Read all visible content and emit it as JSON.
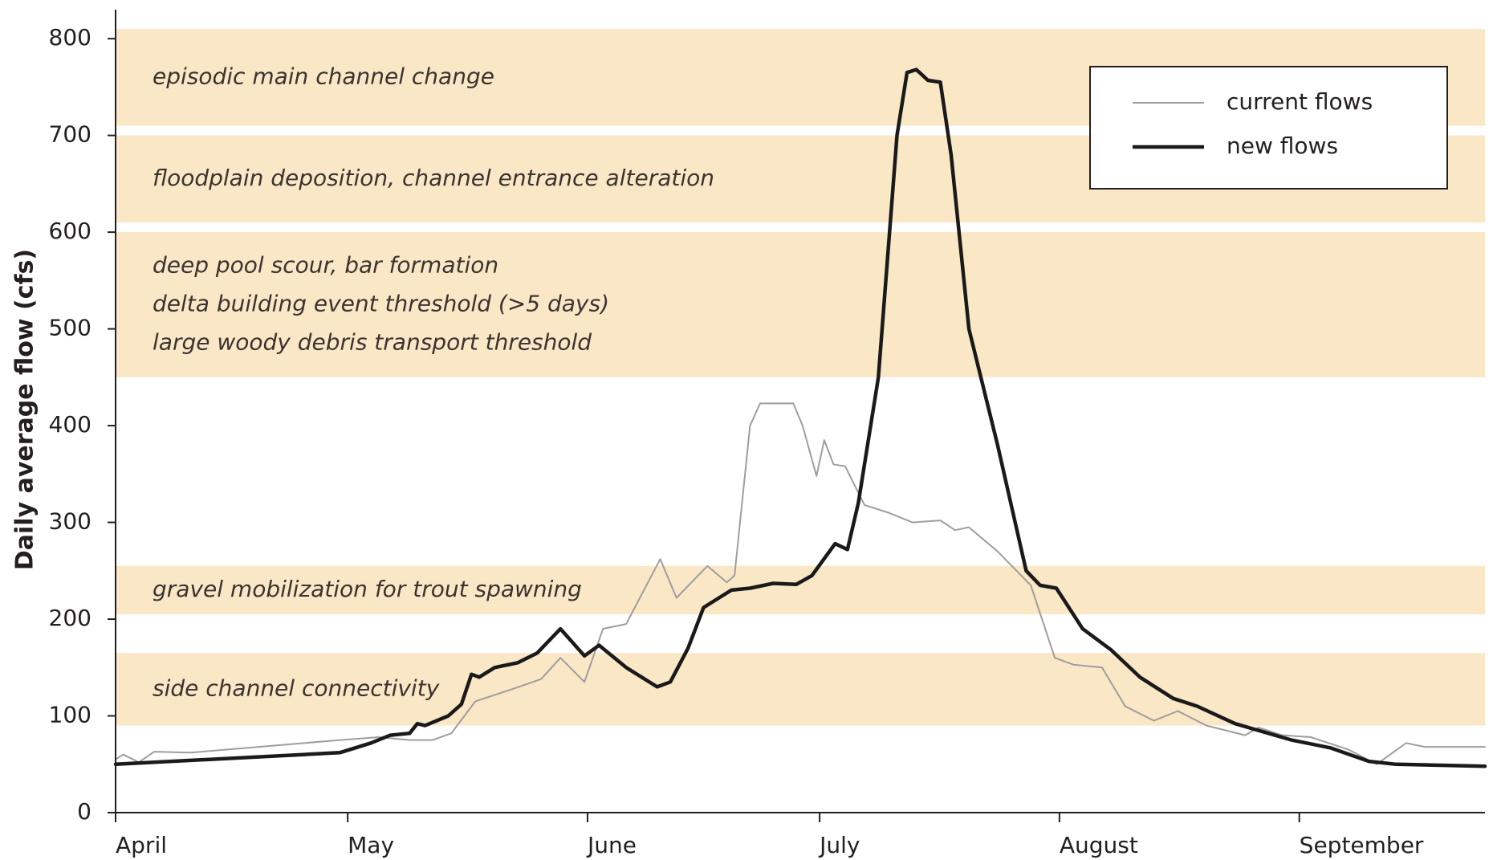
{
  "chart_data": {
    "type": "line",
    "y_label": "Daily average flow (cfs)",
    "xlim": [
      0,
      177
    ],
    "xticks": [
      {
        "value": 0,
        "label": "April"
      },
      {
        "value": 30,
        "label": "May"
      },
      {
        "value": 61,
        "label": "June"
      },
      {
        "value": 91,
        "label": "July"
      },
      {
        "value": 122,
        "label": "August"
      },
      {
        "value": 153,
        "label": "September"
      }
    ],
    "ylim": [
      0,
      830
    ],
    "yticks": [
      0,
      100,
      200,
      300,
      400,
      500,
      600,
      700,
      800
    ],
    "grid": false,
    "legend": "upper right",
    "band_color": "#f9e7c6",
    "bands": [
      {
        "from": 710,
        "to": 810,
        "labels": [
          "episodic main channel change"
        ]
      },
      {
        "from": 610,
        "to": 700,
        "labels": [
          "floodplain deposition, channel entrance alteration"
        ]
      },
      {
        "from": 450,
        "to": 600,
        "labels": [
          "deep pool scour, bar formation",
          "delta building event threshold (>5 days)",
          "large woody debris transport threshold"
        ]
      },
      {
        "from": 205,
        "to": 255,
        "labels": [
          "gravel mobilization for trout spawning"
        ]
      },
      {
        "from": 90,
        "to": 165,
        "labels": [
          "side channel connectivity"
        ]
      }
    ],
    "series": [
      {
        "name": "current flows",
        "color": "#9e9e9e",
        "width": 2,
        "x": [
          0,
          1,
          3,
          5,
          9.7,
          29,
          34,
          38,
          41,
          43.4,
          46.5,
          51.4,
          55,
          57.5,
          60.6,
          63,
          66,
          70.4,
          72.5,
          76.5,
          79,
          80,
          82,
          83.3,
          87.6,
          88.8,
          90.6,
          91.6,
          92.8,
          94.3,
          96.8,
          99.9,
          103,
          106.6,
          108.5,
          110.3,
          114,
          118.3,
          121.4,
          123.8,
          127.5,
          130.5,
          134.2,
          137.3,
          141,
          146,
          147.7,
          150.8,
          154.5,
          159.4,
          163,
          166.8,
          169.2,
          177
        ],
        "values": [
          55,
          60,
          52,
          63,
          62,
          75,
          78,
          75,
          75,
          82,
          115,
          128,
          138,
          160,
          135,
          190,
          195,
          262,
          222,
          255,
          238,
          245,
          400,
          423,
          423,
          400,
          348,
          385,
          360,
          358,
          318,
          310,
          300,
          302,
          292,
          295,
          270,
          235,
          160,
          153,
          150,
          110,
          95,
          105,
          90,
          80,
          88,
          80,
          78,
          65,
          50,
          72,
          68,
          68
        ]
      },
      {
        "name": "new flows",
        "color": "#1a1a1a",
        "width": 4.5,
        "x": [
          0,
          29,
          33,
          35.5,
          38,
          39,
          40,
          43,
          44.7,
          46,
          47,
          49,
          52,
          54.5,
          57.5,
          60.6,
          62.5,
          66,
          70,
          71.7,
          74,
          76,
          79.6,
          82,
          85,
          88,
          90,
          93,
          94.6,
          96,
          98.6,
          101,
          102.3,
          103.5,
          105,
          106.6,
          108,
          110.3,
          114,
          117.7,
          119.5,
          121.6,
          125,
          128.7,
          132.4,
          136.7,
          139.8,
          144.7,
          152,
          157,
          162,
          165.5,
          177
        ],
        "values": [
          50,
          62,
          72,
          80,
          82,
          92,
          90,
          100,
          112,
          143,
          140,
          150,
          155,
          165,
          190,
          162,
          173,
          150,
          130,
          135,
          170,
          212,
          230,
          232,
          237,
          236,
          245,
          278,
          272,
          320,
          450,
          700,
          765,
          768,
          757,
          755,
          680,
          500,
          380,
          250,
          235,
          232,
          190,
          168,
          140,
          118,
          110,
          92,
          75,
          67,
          53,
          50,
          48
        ]
      }
    ]
  }
}
